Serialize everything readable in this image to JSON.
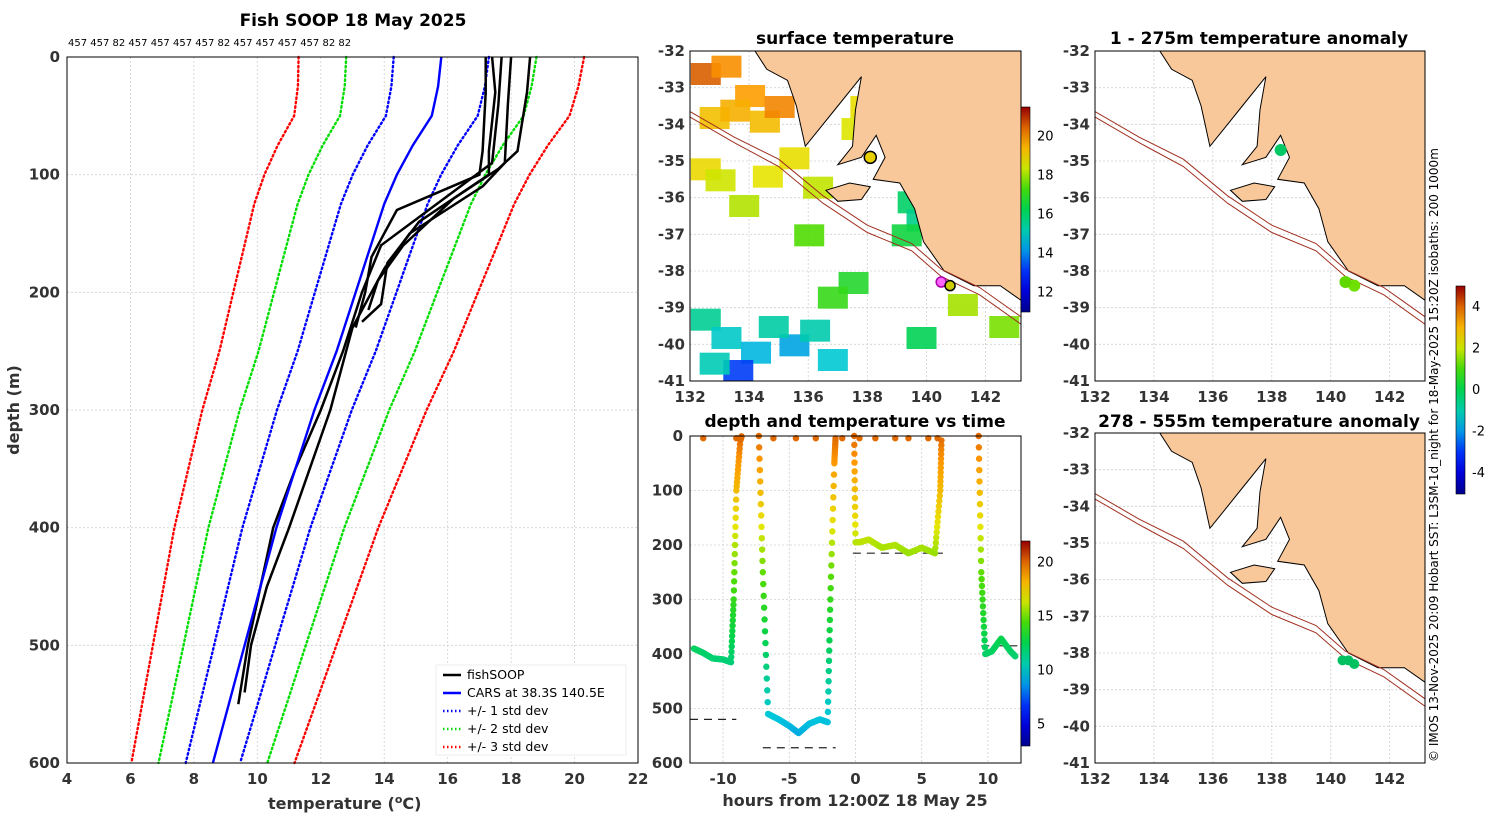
{
  "chart_data": [
    {
      "type": "line",
      "title": "Fish SOOP 18 May 2025",
      "top_counts": "457 457 82 457 457 457 457 82 457 457 457 457 82 82",
      "xlabel": "temperature (",
      "xlabel_sup": "o",
      "xlabel_end": "C)",
      "ylabel": "depth (m)",
      "xlim": [
        4,
        22
      ],
      "ylim": [
        0,
        600
      ],
      "xticks": [
        4,
        6,
        8,
        10,
        12,
        14,
        16,
        18,
        20,
        22
      ],
      "yticks": [
        0,
        100,
        200,
        300,
        400,
        500,
        600
      ],
      "legend": [
        {
          "label": "fishSOOP",
          "color": "#000000",
          "style": "solid"
        },
        {
          "label": "CARS at 38.3S 140.5E",
          "color": "#0000ff",
          "style": "solid"
        },
        {
          "label": "+/- 1 std dev",
          "color": "#0000ff",
          "style": "dotted"
        },
        {
          "label": "+/- 2 std dev",
          "color": "#00dd00",
          "style": "dotted"
        },
        {
          "label": "+/- 3 std dev",
          "color": "#ff0000",
          "style": "dotted"
        }
      ],
      "cars_mean": {
        "depth": [
          0,
          25,
          50,
          75,
          100,
          125,
          150,
          175,
          200,
          250,
          300,
          350,
          400,
          450,
          500,
          550,
          600
        ],
        "temp": [
          15.8,
          15.7,
          15.5,
          14.9,
          14.4,
          14.0,
          13.7,
          13.4,
          13.1,
          12.5,
          11.8,
          11.2,
          10.6,
          10.1,
          9.6,
          9.1,
          8.6
        ]
      },
      "std_dev": [
        1.5,
        3.0,
        4.5
      ],
      "fishsoop_profiles": [
        {
          "depth": [
            0,
            30,
            80,
            100,
            130,
            170,
            200,
            230
          ],
          "temp": [
            17.2,
            17.2,
            17.1,
            17.0,
            14.4,
            13.6,
            13.4,
            13.1
          ]
        },
        {
          "depth": [
            0,
            30,
            80,
            100,
            140,
            175,
            210,
            225
          ],
          "temp": [
            17.4,
            17.5,
            17.3,
            17.3,
            15.1,
            14.1,
            13.9,
            13.3
          ]
        },
        {
          "depth": [
            0,
            30,
            80,
            95,
            120,
            160,
            190,
            215
          ],
          "temp": [
            18.6,
            18.5,
            18.2,
            17.6,
            16.2,
            14.6,
            13.8,
            13.5
          ]
        },
        {
          "depth": [
            0,
            40,
            90,
            110,
            150,
            180,
            200,
            230,
            300,
            400,
            450,
            500,
            540
          ],
          "temp": [
            18.0,
            17.9,
            17.8,
            17.1,
            14.8,
            14.0,
            13.6,
            13.0,
            12.3,
            11.0,
            10.3,
            9.8,
            9.6
          ]
        },
        {
          "depth": [
            0,
            40,
            90,
            120,
            160,
            200,
            250,
            300,
            350,
            400,
            450,
            500,
            550
          ],
          "temp": [
            17.7,
            17.6,
            17.4,
            15.9,
            13.9,
            13.3,
            12.7,
            12.0,
            11.2,
            10.5,
            10.1,
            9.7,
            9.4
          ]
        }
      ]
    },
    {
      "type": "heatmap",
      "title": "surface temperature",
      "xlim": [
        132,
        143.2
      ],
      "ylim": [
        -41,
        -32
      ],
      "xticks": [
        132,
        134,
        136,
        138,
        140,
        142
      ],
      "yticks": [
        -32,
        -33,
        -34,
        -35,
        -36,
        -37,
        -38,
        -39,
        -40,
        -41
      ],
      "colorbar_ticks": [
        12,
        14,
        16,
        18,
        20
      ],
      "colorbar_range": [
        11,
        21.5
      ]
    },
    {
      "type": "heatmap",
      "title": "1 - 275m temperature anomaly",
      "xlim": [
        132,
        143.2
      ],
      "ylim": [
        -41,
        -32
      ],
      "xticks": [
        132,
        134,
        136,
        138,
        140,
        142
      ],
      "yticks": [
        -32,
        -33,
        -34,
        -35,
        -36,
        -37,
        -38,
        -39,
        -40,
        -41
      ]
    },
    {
      "type": "heatmap",
      "title": "278 - 555m temperature anomaly",
      "xlim": [
        132,
        143.2
      ],
      "ylim": [
        -41,
        -32
      ],
      "xticks": [
        132,
        134,
        136,
        138,
        140,
        142
      ],
      "yticks": [
        -32,
        -33,
        -34,
        -35,
        -36,
        -37,
        -38,
        -39,
        -40,
        -41
      ]
    },
    {
      "type": "scatter",
      "title": "depth and temperature vs time",
      "xlabel": "hours from 12:00Z 18 May 25",
      "xlim": [
        -12.5,
        12.5
      ],
      "ylim": [
        0,
        600
      ],
      "xticks": [
        -10,
        -5,
        0,
        5,
        10
      ],
      "yticks": [
        0,
        100,
        200,
        300,
        400,
        500,
        600
      ],
      "colorbar_ticks": [
        5,
        10,
        15,
        20
      ],
      "colorbar_range": [
        3,
        22
      ],
      "bottom_depth_lines": [
        {
          "x0": -12.5,
          "x1": -9.0,
          "depth": 520
        },
        {
          "x0": -7.0,
          "x1": -1.5,
          "depth": 572
        },
        {
          "x0": -0.2,
          "x1": 6.6,
          "depth": 215
        },
        {
          "x0": 9.5,
          "x1": 12.5,
          "depth": 385
        }
      ],
      "tracks": [
        {
          "time": [
            -12.2,
            -11.5,
            -10.8,
            -10.0,
            -9.4,
            -9.2,
            -9.0,
            -8.7,
            -8.6
          ],
          "depth": [
            390,
            398,
            408,
            410,
            415,
            300,
            100,
            8,
            0
          ]
        },
        {
          "time": [
            -7.3,
            -7.0,
            -6.6,
            -5.8,
            -5.0,
            -4.3,
            -3.5,
            -2.7,
            -2.1,
            -1.9,
            -1.6,
            -1.5
          ],
          "depth": [
            0,
            250,
            510,
            520,
            532,
            545,
            528,
            520,
            525,
            300,
            50,
            0
          ]
        },
        {
          "time": [
            -0.1,
            0.0,
            0.3,
            1.0,
            2.0,
            3.0,
            4.0,
            5.0,
            6.0,
            6.4,
            6.5
          ],
          "depth": [
            0,
            195,
            195,
            190,
            205,
            200,
            215,
            205,
            215,
            100,
            0
          ]
        },
        {
          "time": [
            9.3,
            9.5,
            9.8,
            10.3,
            11.0,
            11.7,
            12.1
          ],
          "depth": [
            0,
            250,
            400,
            395,
            372,
            395,
            405
          ]
        }
      ],
      "surface_points": [
        -11.5,
        -9.0,
        -6.2,
        -4.5,
        -3.0,
        -1.0,
        0.3,
        1.5,
        3.0,
        4.0,
        5.5,
        6.2
      ],
      "temperature_colorbar": [
        3,
        22
      ]
    }
  ],
  "anomaly_colorbar": {
    "ticks": [
      -4,
      -2,
      0,
      2,
      4
    ],
    "range": [
      -5,
      5
    ]
  },
  "credit": "© IMOS 13-Nov-2025 20:09 Hobart SST: L3SM-1d_night for 18-May-2025 15:20Z isobaths: 200  1000m",
  "colors": {
    "land": "#f9c89a",
    "isobath": "#a03020",
    "cars": "#0000ff",
    "std1": "#0000ff",
    "std2": "#00dd00",
    "std3": "#ff0000"
  }
}
